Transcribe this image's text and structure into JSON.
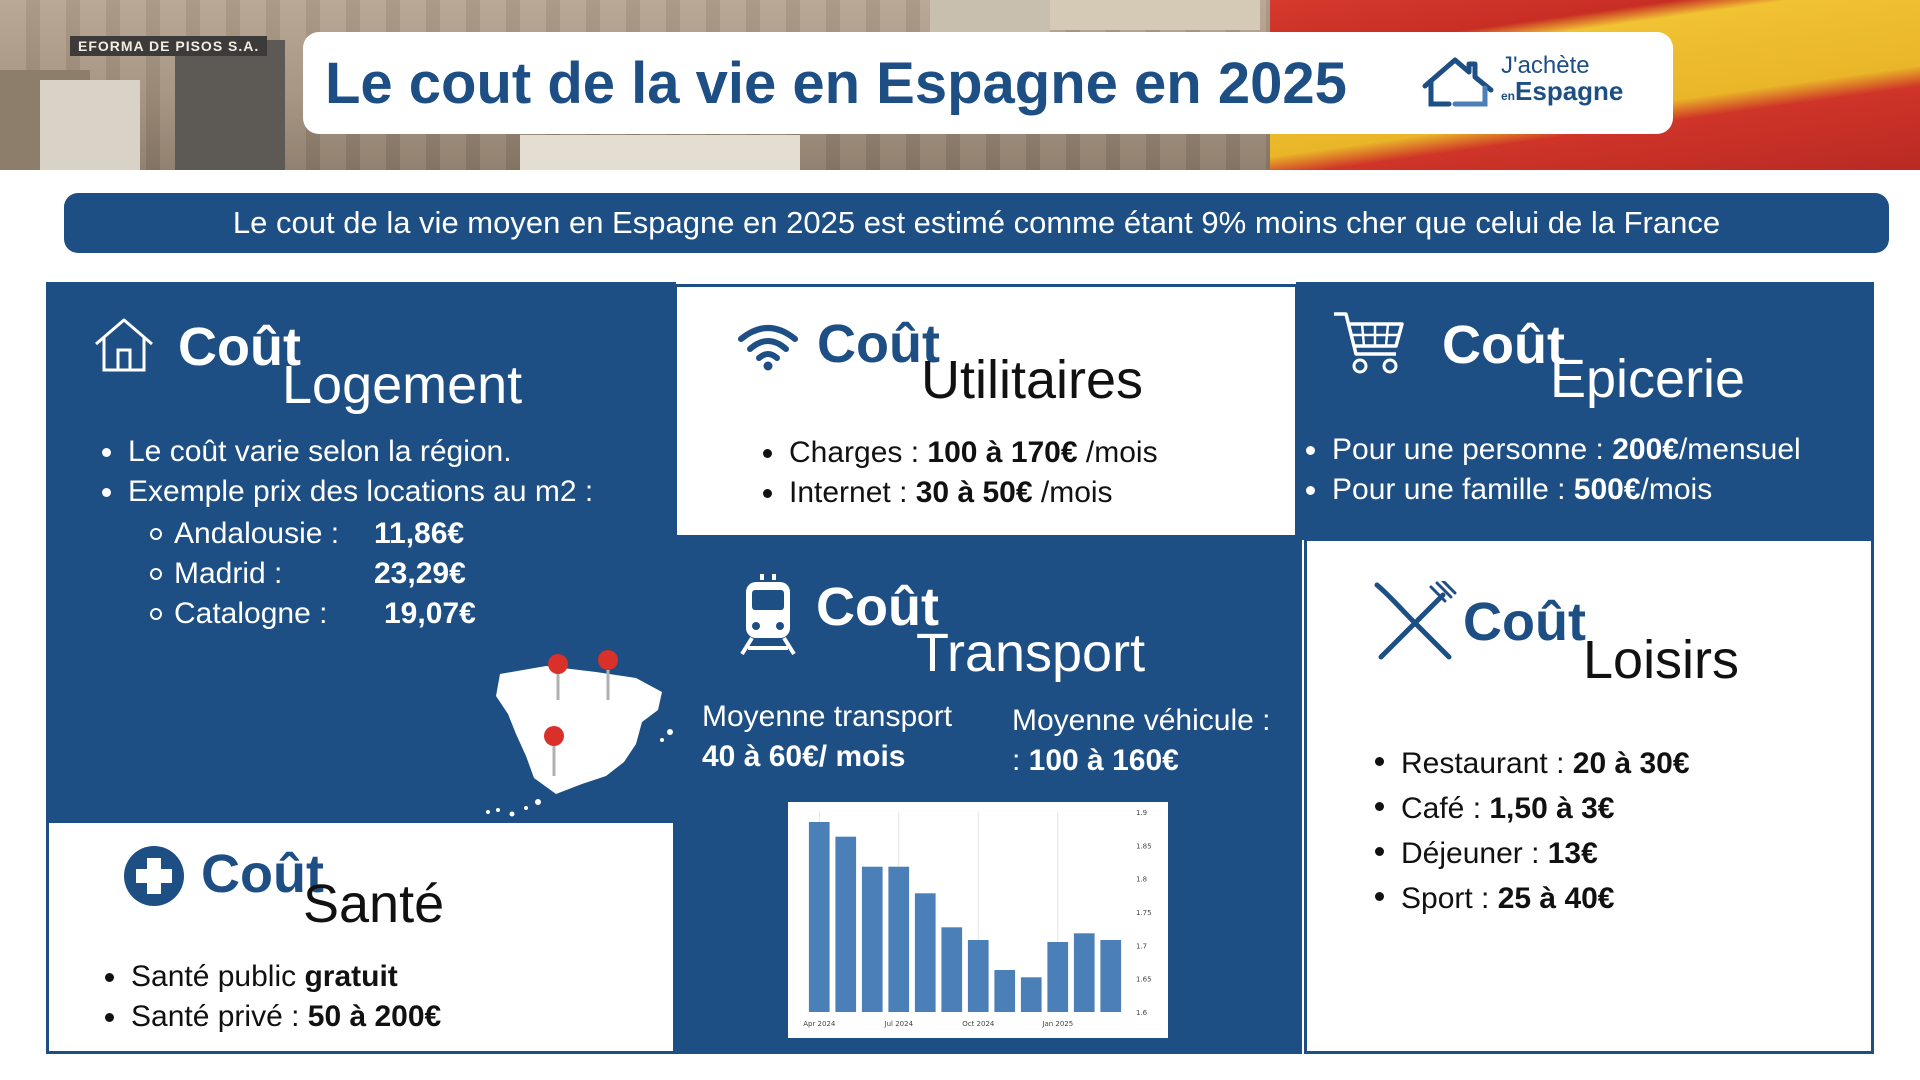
{
  "header": {
    "title": "Le cout de la vie en Espagne en 2025",
    "store_sign": "EFORMA DE PISOS S.A.",
    "logo": {
      "line1": "J'achète",
      "line2_small": "en",
      "line2": "Espagne"
    }
  },
  "subtitle": "Le cout de la vie moyen en Espagne en 2025 est estimé comme étant 9% moins cher que celui de la France",
  "logement": {
    "icon": "house-icon",
    "cout": "Coût",
    "label": "Logement",
    "bullets": [
      "Le coût varie selon la région.",
      "Exemple prix des locations au m2 :"
    ],
    "regions": [
      {
        "name": "Andalousie :",
        "price": "11,86€"
      },
      {
        "name": "Madrid :",
        "price": "23,29€"
      },
      {
        "name": "Catalogne :",
        "price": "19,07€"
      }
    ]
  },
  "utilitaires": {
    "icon": "wifi-icon",
    "cout": "Coût",
    "label": "Utilitaires",
    "items": [
      {
        "label": "Charges : ",
        "value": "100 à 170€",
        "suffix": " /mois"
      },
      {
        "label": "Internet : ",
        "value": "30 à 50€",
        "suffix": " /mois"
      }
    ]
  },
  "epicerie": {
    "icon": "shopping-cart-icon",
    "cout": "Coût",
    "label": "Epicerie",
    "items": [
      {
        "label": "Pour une personne : ",
        "value": "200€",
        "suffix": "/mensuel"
      },
      {
        "label": "Pour une famille : ",
        "value": "500€",
        "suffix": "/mois"
      }
    ]
  },
  "transport": {
    "icon": "train-icon",
    "cout": "Coût",
    "label": "Transport",
    "avg_transport_label": "Moyenne transport",
    "avg_transport_value": "40 à 60€/ mois",
    "avg_vehicle_label": "Moyenne véhicule :",
    "avg_vehicle_value_prefix": ": ",
    "avg_vehicle_value": "100 à 160€"
  },
  "loisirs": {
    "icon": "fork-knife-icon",
    "cout": "Coût",
    "label": "Loisirs",
    "items": [
      {
        "label": "Restaurant : ",
        "value": "20 à 30€"
      },
      {
        "label": "Café : ",
        "value": "1,50 à 3€"
      },
      {
        "label": "Déjeuner : ",
        "value": "13€"
      },
      {
        "label": "Sport : ",
        "value": "25 à 40€"
      }
    ]
  },
  "sante": {
    "icon": "health-cross-icon",
    "cout": "Coût",
    "label": "Santé",
    "items": [
      {
        "label": "Santé public ",
        "value": "gratuit"
      },
      {
        "label": "Santé privé : ",
        "value": "50 à 200€"
      }
    ]
  },
  "chart_data": {
    "type": "bar",
    "categories": [
      "Apr 2024",
      "",
      "",
      "Jul 2024",
      "",
      "",
      "Oct 2024",
      "",
      "",
      "Jan 2025",
      "",
      ""
    ],
    "x_tick_labels": [
      "Apr 2024",
      "Jul 2024",
      "Oct 2024",
      "Jan 2025"
    ],
    "values": [
      1.885,
      1.863,
      1.818,
      1.818,
      1.778,
      1.727,
      1.708,
      1.663,
      1.652,
      1.705,
      1.718,
      1.708
    ],
    "ylim": [
      1.6,
      1.9
    ],
    "y_ticks": [
      "1.9",
      "1.85",
      "1.8",
      "1.75",
      "1.7",
      "1.65",
      "1.6"
    ],
    "y_axis_side": "right",
    "grid": "vertical",
    "color": "#4a7fb8"
  },
  "colors": {
    "brand": "#1d4e84",
    "marker": "#d9302a"
  }
}
